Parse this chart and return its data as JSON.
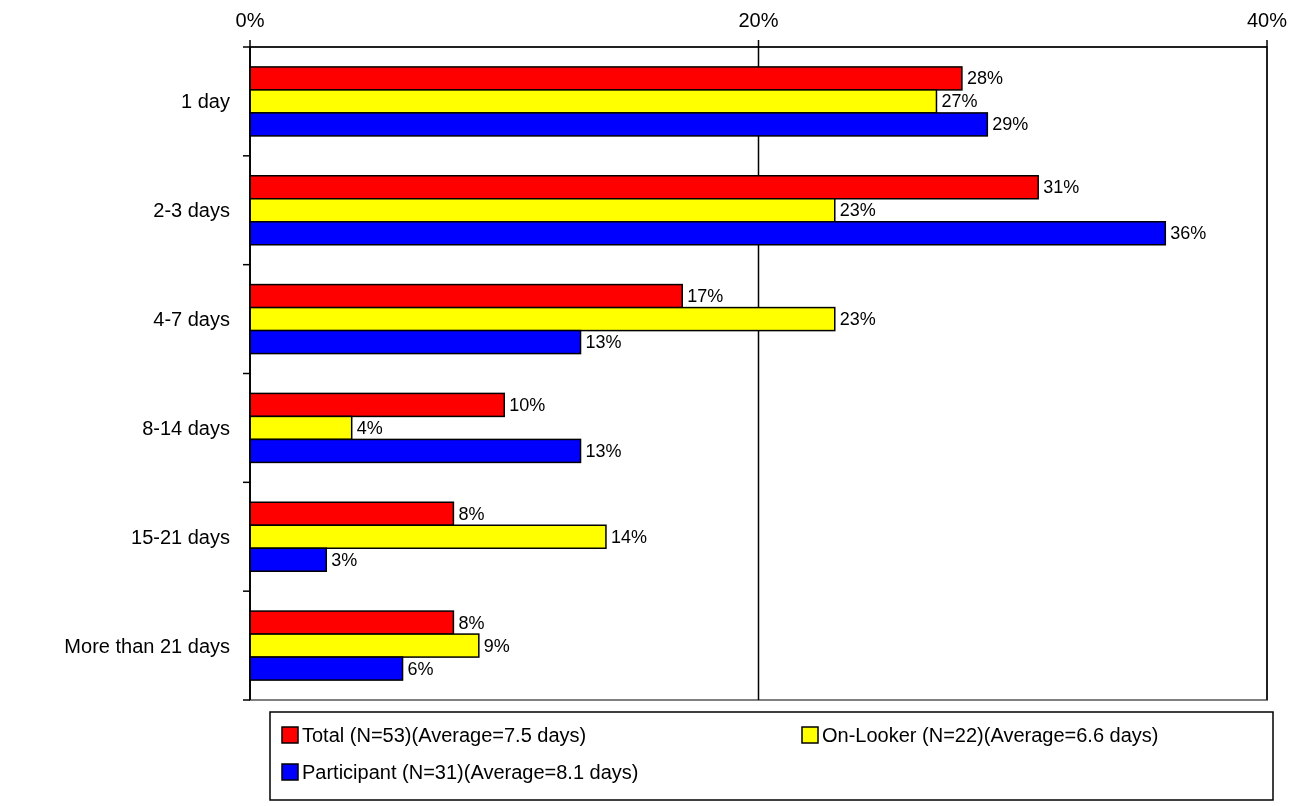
{
  "chart_data": {
    "type": "bar",
    "orientation": "horizontal",
    "categories": [
      "1 day",
      "2-3 days",
      "4-7 days",
      "8-14 days",
      "15-21 days",
      "More than 21 days"
    ],
    "series": [
      {
        "name": "Total (N=53)(Average=7.5 days)",
        "color": "#ff0000",
        "values": [
          28,
          31,
          17,
          10,
          8,
          8
        ],
        "value_labels": [
          "28%",
          "31%",
          "17%",
          "10%",
          "8%",
          "8%"
        ]
      },
      {
        "name": "On-Looker (N=22)(Average=6.6 days)",
        "color": "#ffff00",
        "values": [
          27,
          23,
          23,
          4,
          14,
          9
        ],
        "value_labels": [
          "27%",
          "23%",
          "23%",
          "4%",
          "14%",
          "9%"
        ]
      },
      {
        "name": "Participant (N=31)(Average=8.1 days)",
        "color": "#0000ff",
        "values": [
          29,
          36,
          13,
          13,
          3,
          6
        ],
        "value_labels": [
          "29%",
          "36%",
          "13%",
          "13%",
          "3%",
          "6%"
        ]
      }
    ],
    "xlim": [
      0,
      40
    ],
    "xticks": [
      {
        "value": 0,
        "label": "0%"
      },
      {
        "value": 20,
        "label": "20%"
      },
      {
        "value": 40,
        "label": "40%"
      }
    ],
    "grid": "x",
    "legend": "bottom"
  }
}
